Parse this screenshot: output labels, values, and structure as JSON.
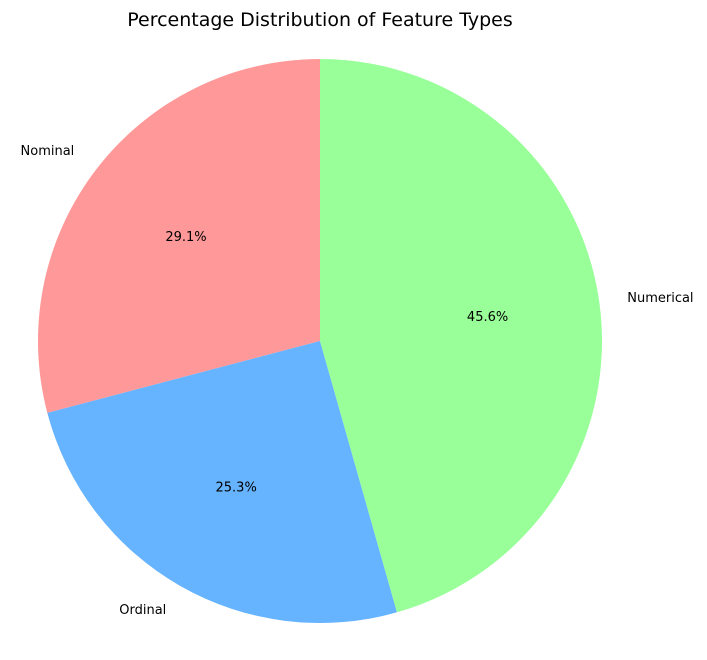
{
  "chart_data": {
    "type": "pie",
    "title": "Percentage Distribution of Feature Types",
    "labels": [
      "Nominal",
      "Ordinal",
      "Numerical"
    ],
    "values": [
      29.1,
      25.3,
      45.6
    ],
    "percent_labels": [
      "29.1%",
      "25.3%",
      "45.6%"
    ],
    "colors": [
      "#ff9999",
      "#66b3ff",
      "#99ff99"
    ],
    "start_angle_deg": 90,
    "direction": "counterclockwise"
  }
}
